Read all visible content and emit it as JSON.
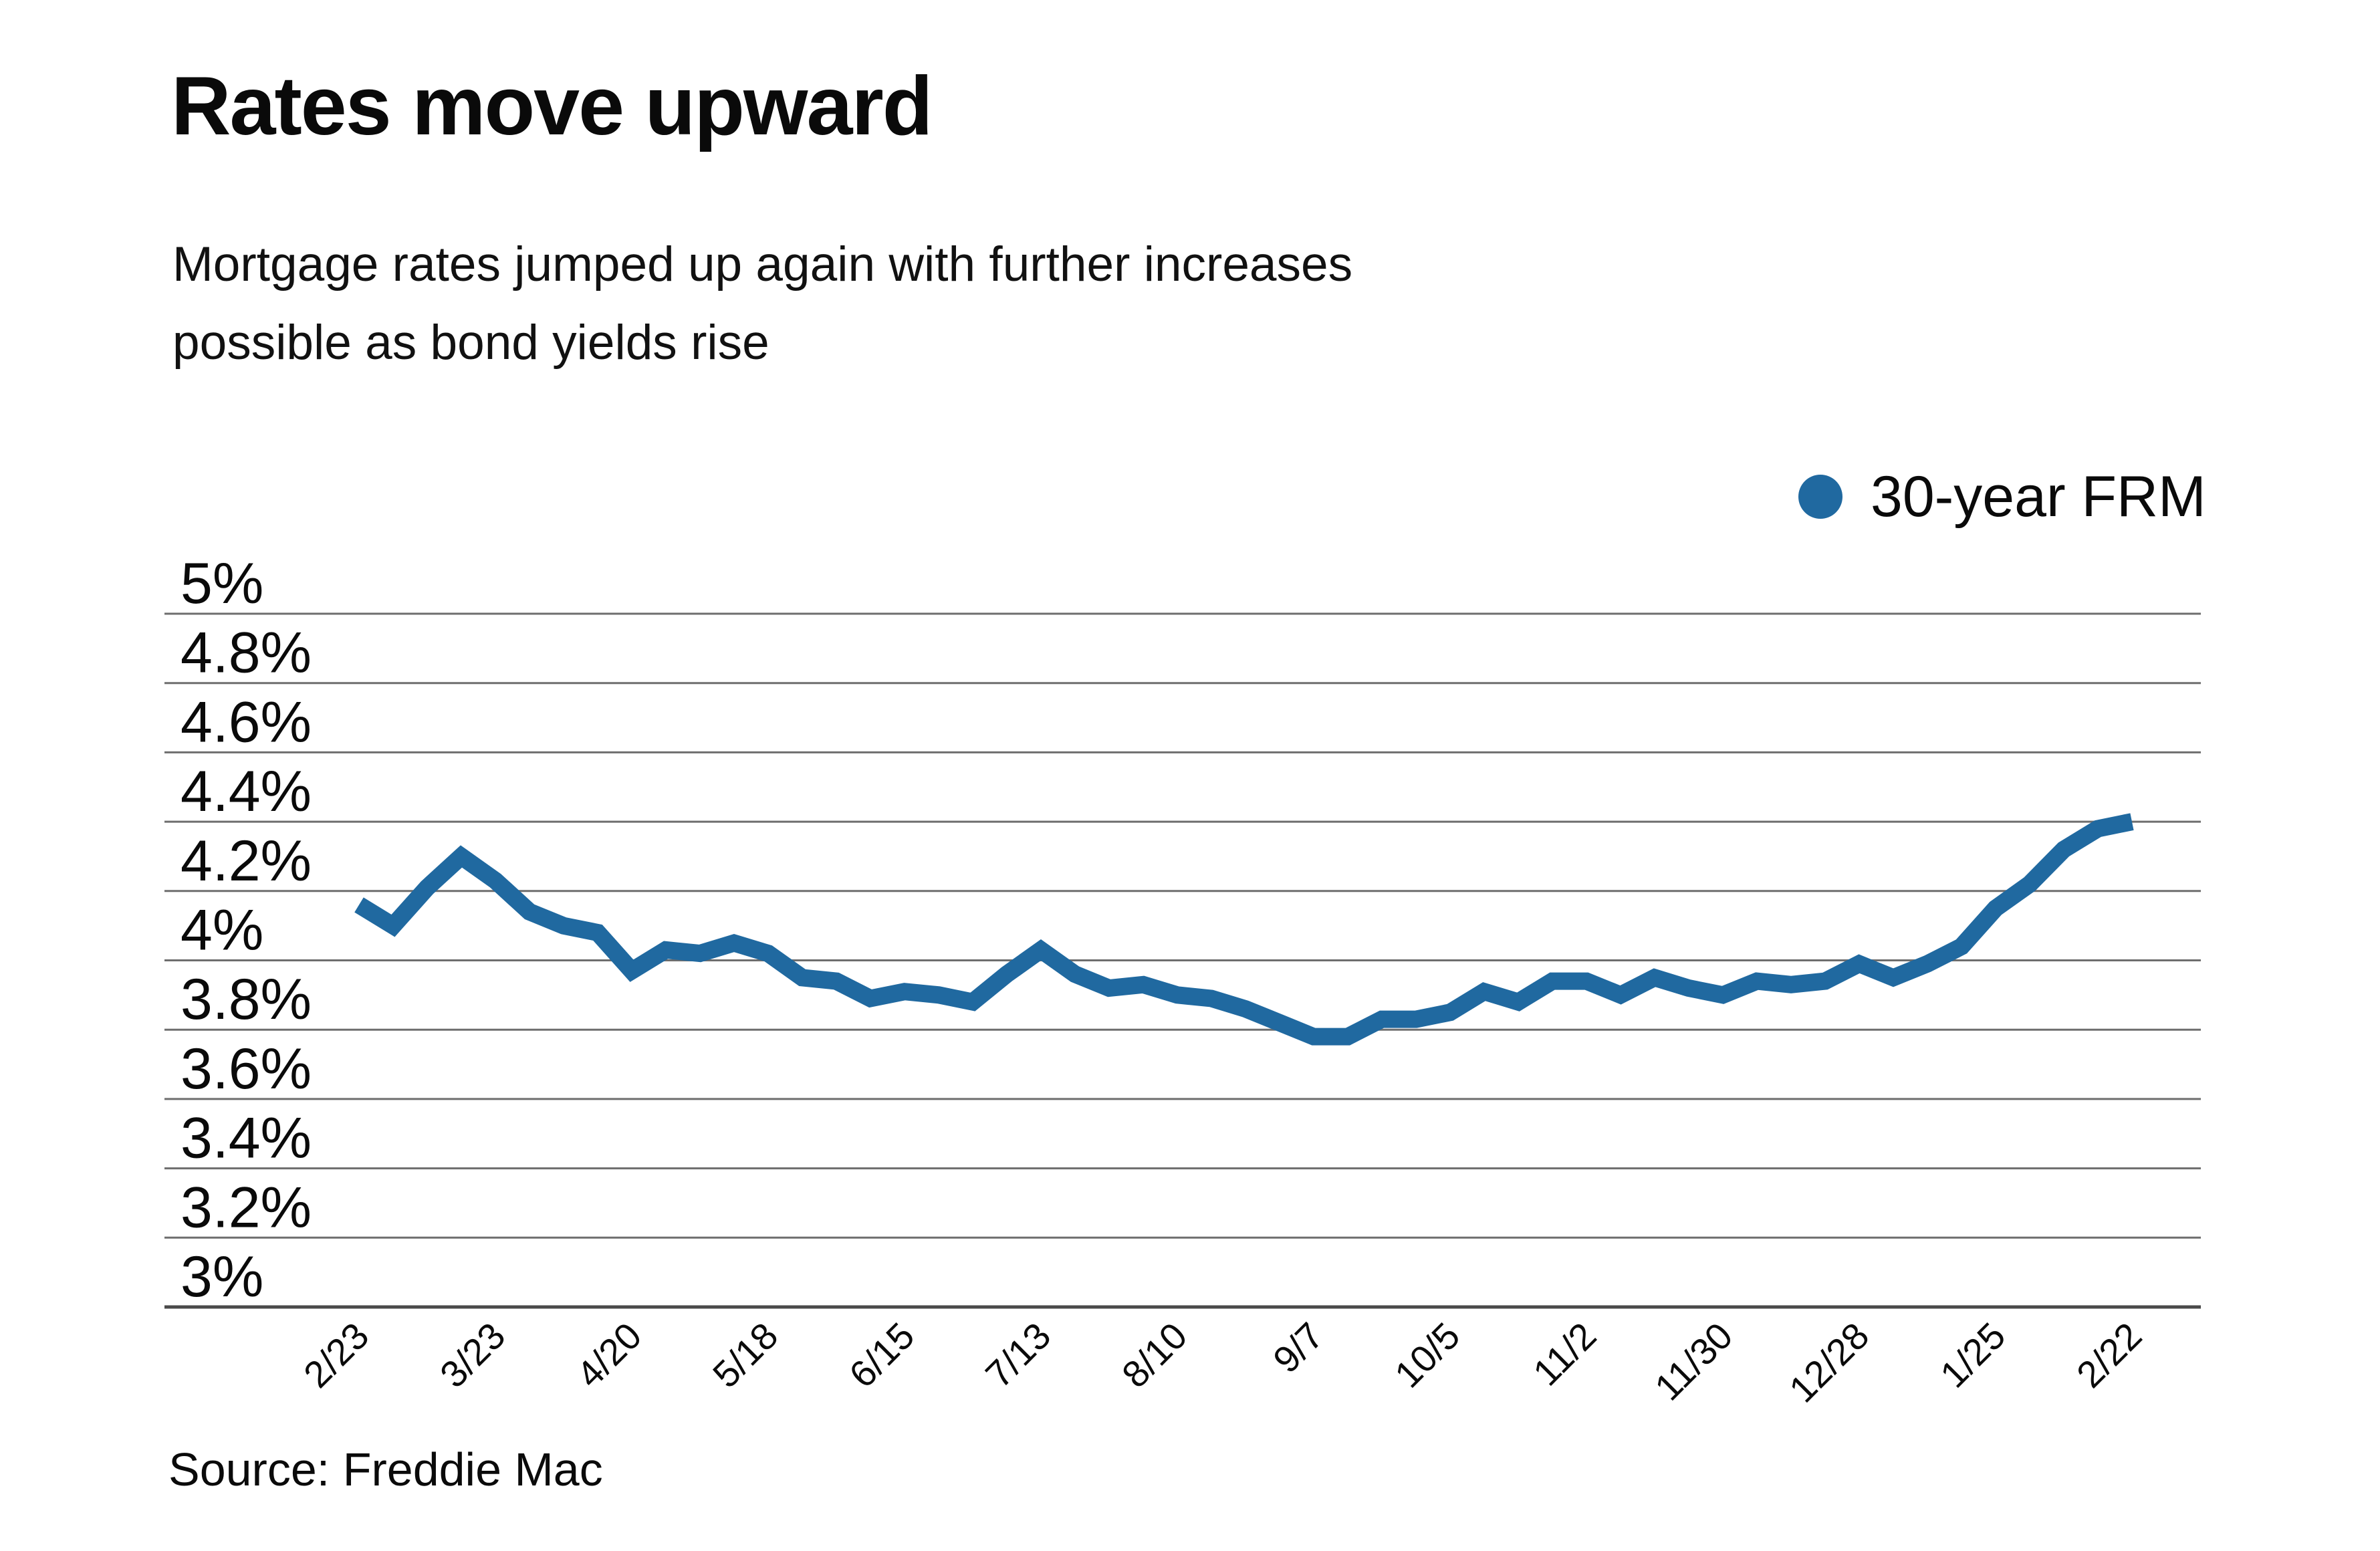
{
  "header": {
    "title": "Rates move upward",
    "subtitle_lines": [
      "Mortgage rates jumped up again with further increases",
      "possible as bond yields rise"
    ]
  },
  "legend": {
    "label": "30-year FRM",
    "position": "top-right",
    "dot_color": "#2069A0"
  },
  "source_line": "Source: Freddie Mac",
  "colors": {
    "line": "#2069A0",
    "gridline": "#6e6e6e",
    "axis_line": "#4a4a4a",
    "text": "#0a0a0a",
    "background": "#ffffff"
  },
  "chart_data": {
    "type": "line",
    "title": "Rates move upward",
    "subtitle": "Mortgage rates jumped up again with further increases possible as bond yields rise",
    "source": "Source: Freddie Mac",
    "grid": "horizontal-only",
    "legend_position": "top-right",
    "x": [
      "2/23",
      "3/2",
      "3/9",
      "3/16",
      "3/23",
      "3/30",
      "4/6",
      "4/13",
      "4/20",
      "4/27",
      "5/4",
      "5/11",
      "5/18",
      "5/25",
      "6/1",
      "6/8",
      "6/15",
      "6/22",
      "6/29",
      "7/6",
      "7/13",
      "7/20",
      "7/27",
      "8/3",
      "8/10",
      "8/17",
      "8/24",
      "8/31",
      "9/7",
      "9/14",
      "9/21",
      "9/28",
      "10/5",
      "10/12",
      "10/19",
      "10/26",
      "11/2",
      "11/9",
      "11/16",
      "11/22",
      "11/30",
      "12/7",
      "12/14",
      "12/21",
      "12/28",
      "1/4",
      "1/11",
      "1/18",
      "1/25",
      "2/1",
      "2/8",
      "2/15",
      "2/22"
    ],
    "series": [
      {
        "name": "30-year FRM",
        "color": "#2069A0",
        "values": [
          4.16,
          4.1,
          4.21,
          4.3,
          4.23,
          4.14,
          4.1,
          4.08,
          3.97,
          4.03,
          4.02,
          4.05,
          4.02,
          3.95,
          3.94,
          3.89,
          3.91,
          3.9,
          3.88,
          3.96,
          4.03,
          3.96,
          3.92,
          3.93,
          3.9,
          3.89,
          3.86,
          3.82,
          3.78,
          3.78,
          3.83,
          3.83,
          3.85,
          3.91,
          3.88,
          3.94,
          3.94,
          3.9,
          3.95,
          3.92,
          3.9,
          3.94,
          3.93,
          3.94,
          3.99,
          3.95,
          3.99,
          4.04,
          4.15,
          4.22,
          4.32,
          4.38,
          4.4
        ]
      }
    ],
    "x_axis": {
      "tick_indices": [
        0,
        4,
        8,
        12,
        16,
        20,
        24,
        28,
        32,
        36,
        40,
        44,
        48,
        52
      ],
      "tick_labels": [
        "2/23",
        "3/23",
        "4/20",
        "5/18",
        "6/15",
        "7/13",
        "8/10",
        "9/7",
        "10/5",
        "11/2",
        "11/30",
        "12/28",
        "1/25",
        "2/22"
      ],
      "label_rotation_deg": -45
    },
    "y_axis": {
      "min": 3,
      "max": 5,
      "tick_values": [
        5,
        4.8,
        4.6,
        4.4,
        4.2,
        4,
        3.8,
        3.6,
        3.4,
        3.2,
        3
      ],
      "tick_labels": [
        "5%",
        "4.8%",
        "4.6%",
        "4.4%",
        "4.2%",
        "4%",
        "3.8%",
        "3.6%",
        "3.4%",
        "3.2%",
        "3%"
      ]
    }
  }
}
